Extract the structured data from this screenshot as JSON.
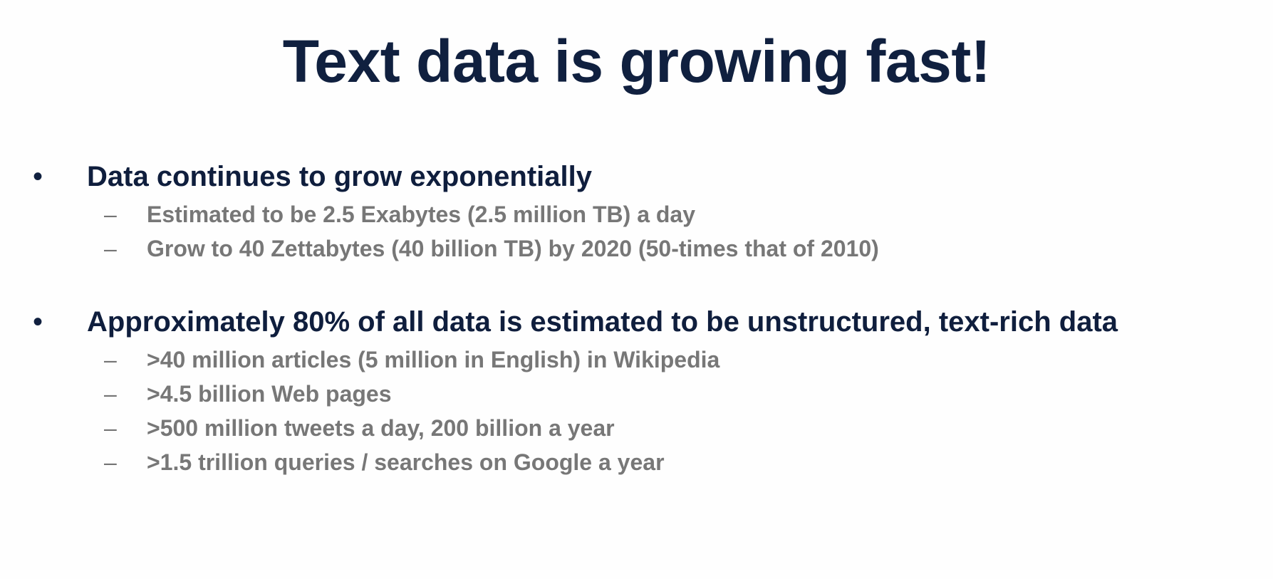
{
  "slide": {
    "title": "Text data is growing fast!",
    "bullets": [
      {
        "text": "Data continues to grow exponentially",
        "subitems": [
          "Estimated to be 2.5 Exabytes (2.5 million TB) a day",
          "Grow to 40 Zettabytes (40 billion TB) by 2020 (50-times that of 2010)"
        ]
      },
      {
        "text": "Approximately 80% of all data is estimated to be unstructured, text-rich data",
        "subitems": [
          ">40 million articles (5 million in English) in Wikipedia",
          ">4.5 billion Web pages",
          ">500 million tweets a day, 200 billion a year",
          ">1.5 trillion queries / searches on Google a year"
        ]
      }
    ],
    "bullet_symbol": "•",
    "dash_symbol": "–",
    "colors": {
      "title": "#10203f",
      "main_text": "#0f1e3d",
      "sub_text": "#777777",
      "background": "#fefefe"
    }
  }
}
